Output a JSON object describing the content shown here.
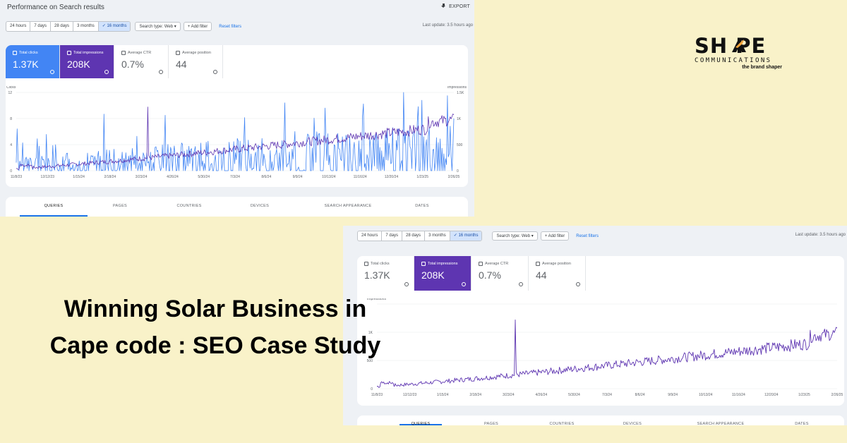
{
  "screenshot1": {
    "title": "Performance on Search results",
    "export_label": "EXPORT",
    "ranges": [
      "24 hours",
      "7 days",
      "28 days",
      "3 months",
      "✓ 16 months"
    ],
    "search_type": "Search type: Web ▾",
    "add_filter": "+ Add filter",
    "reset_filters": "Reset filters",
    "last_update": "Last update: 3.5 hours ago",
    "metrics": [
      {
        "label": "Total clicks",
        "value": "1.37K",
        "selected": true
      },
      {
        "label": "Total impressions",
        "value": "208K",
        "selected": true
      },
      {
        "label": "Average CTR",
        "value": "0.7%",
        "selected": false
      },
      {
        "label": "Average position",
        "value": "44",
        "selected": false
      }
    ],
    "tabs": [
      "QUERIES",
      "PAGES",
      "COUNTRIES",
      "DEVICES",
      "SEARCH APPEARANCE",
      "DATES"
    ]
  },
  "screenshot2": {
    "ranges": [
      "24 hours",
      "7 days",
      "28 days",
      "3 months",
      "✓ 16 months"
    ],
    "search_type": "Search type: Web ▾",
    "add_filter": "+ Add filter",
    "reset_filters": "Reset filters",
    "last_update": "Last update: 3.5 hours ago",
    "metrics": [
      {
        "label": "Total clicks",
        "value": "1.37K",
        "selected": false
      },
      {
        "label": "Total impressions",
        "value": "208K",
        "selected": true
      },
      {
        "label": "Average CTR",
        "value": "0.7%",
        "selected": false
      },
      {
        "label": "Average position",
        "value": "44",
        "selected": false
      }
    ],
    "tabs": [
      "QUERIES",
      "PAGES",
      "COUNTRIES",
      "DEVICES",
      "SEARCH APPEARANCE",
      "DATES"
    ]
  },
  "heading": {
    "line1": "Winning Solar Business in",
    "line2": "Cape code : SEO Case Study"
  },
  "logo": {
    "word": "SH PE",
    "sub": "COMMUNICATIONS",
    "tagline": "the brand shaper",
    "accent": "#f2a33a"
  },
  "colors": {
    "clicks": "#4285f4",
    "impressions": "#5e35b1",
    "background": "#f9f2c9"
  },
  "chart_data": [
    {
      "type": "line",
      "x_ticks": [
        "11/8/23",
        "12/12/23",
        "1/15/24",
        "2/18/24",
        "3/23/24",
        "4/26/24",
        "5/30/24",
        "7/3/24",
        "8/6/24",
        "9/9/24",
        "10/13/24",
        "11/16/24",
        "12/20/24",
        "1/23/25",
        "2/26/25"
      ],
      "left_axis": {
        "label": "Clicks",
        "ticks": [
          "12",
          "8",
          "4",
          "0"
        ],
        "ylim": [
          0,
          12
        ]
      },
      "right_axis": {
        "label": "Impressions",
        "ticks": [
          "1.5K",
          "1K",
          "500",
          "0"
        ],
        "ylim": [
          0,
          1500
        ]
      },
      "series": [
        {
          "name": "Clicks",
          "axis": "left",
          "color": "#4285f4",
          "shape": "noisy upward trend, daily values mostly 0-4 early, 2-8 later, peak ~12 at end"
        },
        {
          "name": "Impressions",
          "axis": "right",
          "color": "#5e35b1",
          "shape": "gradual rise ~50 to ~900, spike ~1.2K in Feb 2024"
        }
      ]
    },
    {
      "type": "line",
      "x_ticks": [
        "11/8/23",
        "12/12/23",
        "1/15/24",
        "2/18/24",
        "3/23/24",
        "4/26/24",
        "5/30/24",
        "7/3/24",
        "8/6/24",
        "9/9/24",
        "10/13/24",
        "11/16/24",
        "12/20/24",
        "1/23/25",
        "2/26/25"
      ],
      "left_axis": {
        "label": "Impressions",
        "ticks": [
          "1K",
          "500",
          "0"
        ],
        "ylim": [
          0,
          1500
        ]
      },
      "series": [
        {
          "name": "Impressions",
          "axis": "left",
          "color": "#5e35b1",
          "shape": "gradual rise ~50 to ~900, spike ~1.2K in Feb 2024"
        }
      ]
    }
  ]
}
